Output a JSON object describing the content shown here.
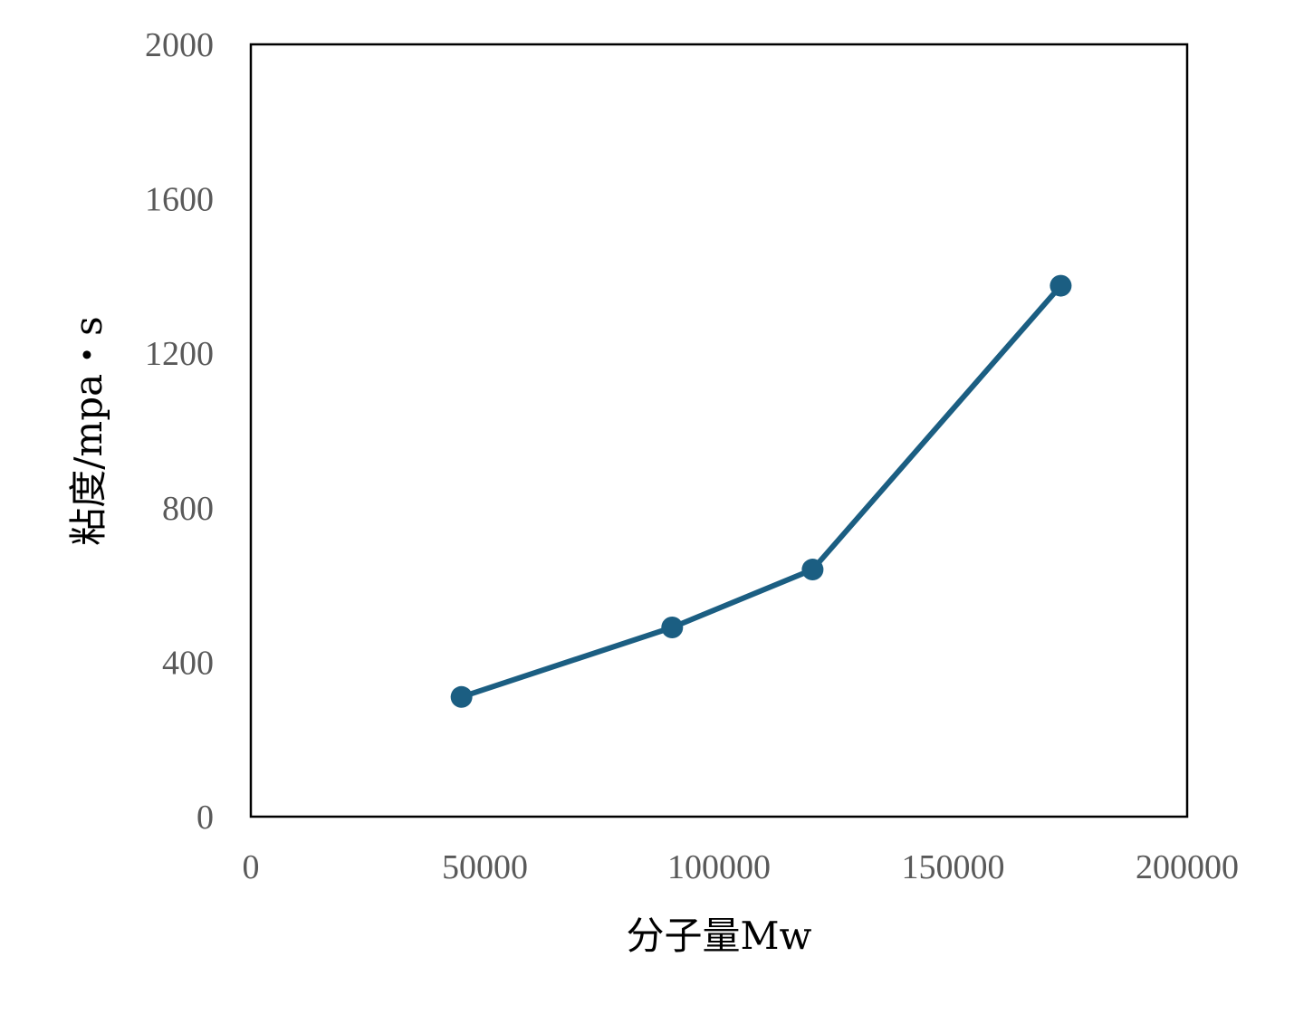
{
  "chart_data": {
    "type": "line",
    "title": "",
    "xlabel": "分子量Mw",
    "ylabel": "粘度/mpa・s",
    "xlim": [
      0,
      200000
    ],
    "ylim": [
      0,
      2000
    ],
    "x_ticks": [
      "0",
      "50000",
      "100000",
      "150000",
      "200000"
    ],
    "y_ticks": [
      "0",
      "400",
      "800",
      "1200",
      "1600",
      "2000"
    ],
    "grid": false,
    "series": [
      {
        "x": [
          45000,
          90000,
          120000,
          173000
        ],
        "y": [
          310,
          490,
          640,
          1375
        ]
      }
    ],
    "colors": {
      "series": "#1b5e82",
      "frame": "#000000",
      "tick_text": "#595959"
    }
  }
}
